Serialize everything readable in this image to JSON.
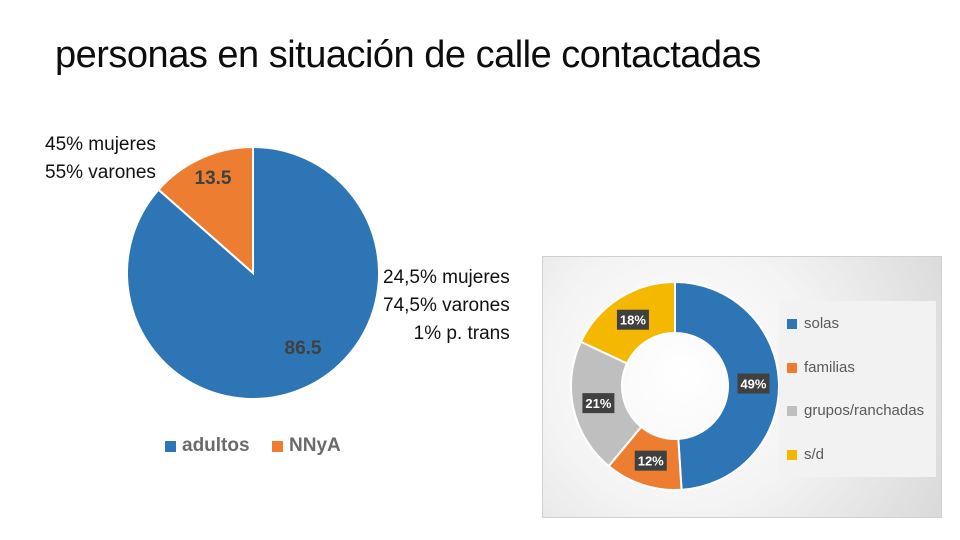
{
  "title": "personas en situación de calle contactadas",
  "colors": {
    "blue": "#2e75b6",
    "orange": "#ed7d31",
    "gray": "#bfbfbf",
    "gold": "#f5b800"
  },
  "notes": {
    "nnya": [
      "45% mujeres",
      "55% varones"
    ],
    "adultos": [
      "24,5% mujeres",
      "74,5% varones",
      "1% p. trans"
    ]
  },
  "chart_data": [
    {
      "type": "pie",
      "categories": [
        "adultos",
        "NNyA"
      ],
      "values": [
        86.5,
        13.5
      ],
      "labels": [
        "86.5",
        "13.5"
      ],
      "colors": [
        "#2e75b6",
        "#ed7d31"
      ],
      "legend": [
        "adultos",
        "NNyA"
      ],
      "legend_position": "bottom"
    },
    {
      "type": "pie",
      "variant": "donut",
      "categories": [
        "solas",
        "familias",
        "grupos/ranchadas",
        "s/d"
      ],
      "values": [
        49,
        12,
        21,
        18
      ],
      "labels": [
        "49%",
        "12%",
        "21%",
        "18%"
      ],
      "colors": [
        "#2e75b6",
        "#ed7d31",
        "#bfbfbf",
        "#f5b800"
      ],
      "legend": [
        "solas",
        "familias",
        "grupos/ranchadas",
        "s/d"
      ],
      "legend_position": "right"
    }
  ]
}
